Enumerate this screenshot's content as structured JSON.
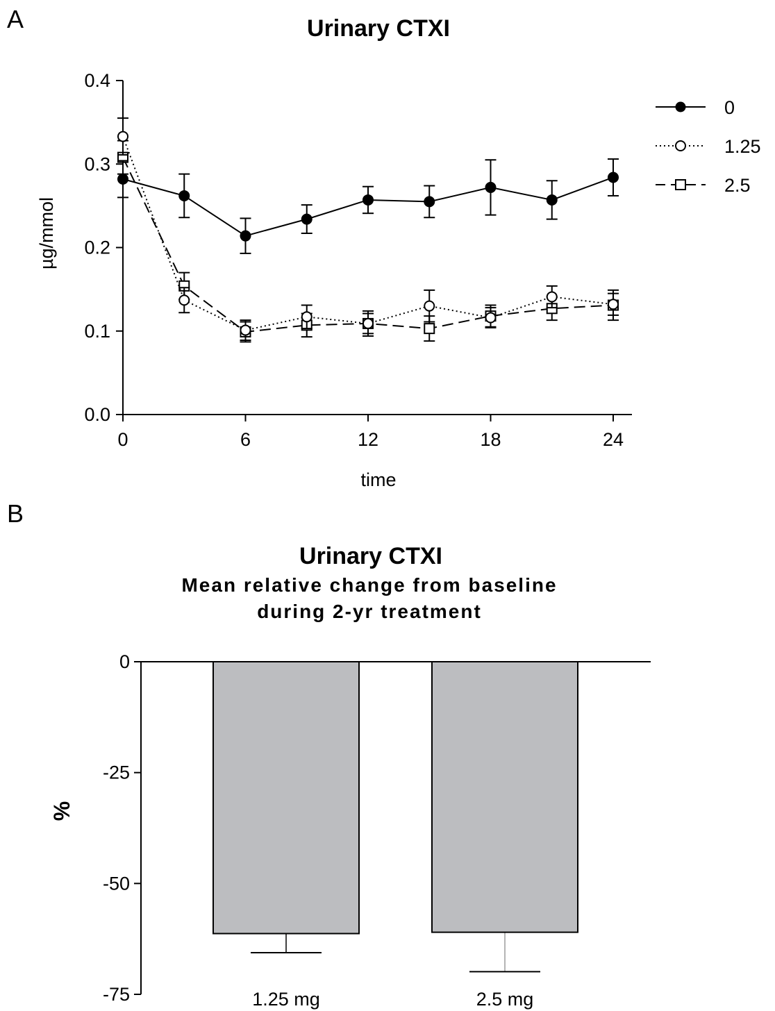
{
  "chart_data": [
    {
      "panel": "A",
      "type": "line",
      "title": "Urinary CTXI",
      "xlabel": "time",
      "ylabel": "µg/mmol",
      "xlim": [
        0,
        24
      ],
      "ylim": [
        0,
        0.4
      ],
      "xticks": [
        0,
        6,
        12,
        18,
        24
      ],
      "yticks": [
        0.0,
        0.1,
        0.2,
        0.3,
        0.4
      ],
      "ytick_labels": [
        "0.0",
        "0.1",
        "0.2",
        "0.3",
        "0.4"
      ],
      "legend_position": "top-right",
      "grid": false,
      "x": [
        0,
        3,
        6,
        9,
        12,
        15,
        18,
        21,
        24
      ],
      "series": [
        {
          "name": "0",
          "marker": "filled-circle",
          "line_style": "solid",
          "values": [
            0.282,
            0.262,
            0.214,
            0.234,
            0.257,
            0.255,
            0.272,
            0.257,
            0.284
          ],
          "errors": [
            0.022,
            0.026,
            0.021,
            0.017,
            0.016,
            0.019,
            0.033,
            0.023,
            0.022
          ]
        },
        {
          "name": "1.25",
          "marker": "open-circle",
          "line_style": "dotted",
          "values": [
            0.333,
            0.137,
            0.101,
            0.117,
            0.109,
            0.13,
            0.116,
            0.141,
            0.132
          ],
          "errors": [
            0.022,
            0.015,
            0.012,
            0.014,
            0.012,
            0.019,
            0.012,
            0.013,
            0.013
          ]
        },
        {
          "name": "2.5",
          "marker": "open-square",
          "line_style": "dashed",
          "values": [
            0.308,
            0.154,
            0.099,
            0.107,
            0.109,
            0.103,
            0.118,
            0.127,
            0.131
          ],
          "errors": [
            0.02,
            0.016,
            0.012,
            0.014,
            0.015,
            0.015,
            0.013,
            0.014,
            0.018
          ]
        }
      ]
    },
    {
      "panel": "B",
      "type": "bar",
      "title": "Urinary CTXI",
      "subtitle_lines": [
        "Mean relative change from baseline",
        "during 2-yr treatment"
      ],
      "xlabel": "",
      "ylabel": "%",
      "ylim": [
        -75,
        0
      ],
      "yticks": [
        0,
        -25,
        -50,
        -75
      ],
      "categories": [
        "1.25 mg",
        "2.5 mg"
      ],
      "values": [
        -61.3,
        -61.0
      ],
      "errors": [
        4.3,
        8.9
      ],
      "bar_color": "#bcbdc0",
      "grid": false
    }
  ]
}
